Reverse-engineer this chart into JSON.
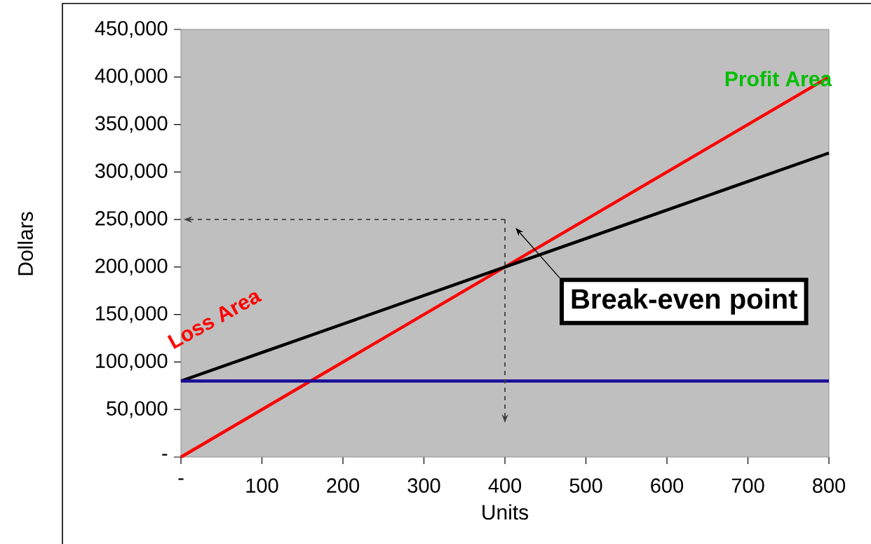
{
  "chart_data": {
    "type": "line",
    "xlabel": "Units",
    "ylabel": "Dollars",
    "x": [
      0,
      100,
      200,
      300,
      400,
      500,
      600,
      700,
      800
    ],
    "series": [
      {
        "color": "#ff0000",
        "values": [
          0,
          50000,
          100000,
          150000,
          200000,
          250000,
          300000,
          350000,
          400000
        ]
      },
      {
        "color": "#000000",
        "values": [
          80000,
          110000,
          140000,
          170000,
          200000,
          230000,
          260000,
          290000,
          320000
        ]
      },
      {
        "color": "#1a0d99",
        "values": [
          80000,
          80000,
          80000,
          80000,
          80000,
          80000,
          80000,
          80000,
          80000
        ]
      }
    ],
    "xlim": [
      0,
      800
    ],
    "ylim": [
      0,
      450000
    ],
    "xticks": [
      {
        "value": 0,
        "label": "-"
      },
      100,
      200,
      300,
      400,
      500,
      600,
      700,
      800
    ],
    "yticks": [
      {
        "value": 0,
        "label": "-"
      },
      {
        "value": 50000,
        "label": "50,000"
      },
      {
        "value": 100000,
        "label": "100,000"
      },
      {
        "value": 150000,
        "label": "150,000"
      },
      {
        "value": 200000,
        "label": "200,000"
      },
      {
        "value": 250000,
        "label": "250,000"
      },
      {
        "value": 300000,
        "label": "300,000"
      },
      {
        "value": 350000,
        "label": "350,000"
      },
      {
        "value": 400000,
        "label": "400,000"
      },
      {
        "value": 450000,
        "label": "450,000"
      }
    ],
    "annotations": [
      "Loss Area",
      "Profit Area",
      {
        "text": "Break-even point",
        "x": 400,
        "y": 200000
      }
    ],
    "grid": false,
    "marker": "none",
    "line_style": "solid"
  }
}
